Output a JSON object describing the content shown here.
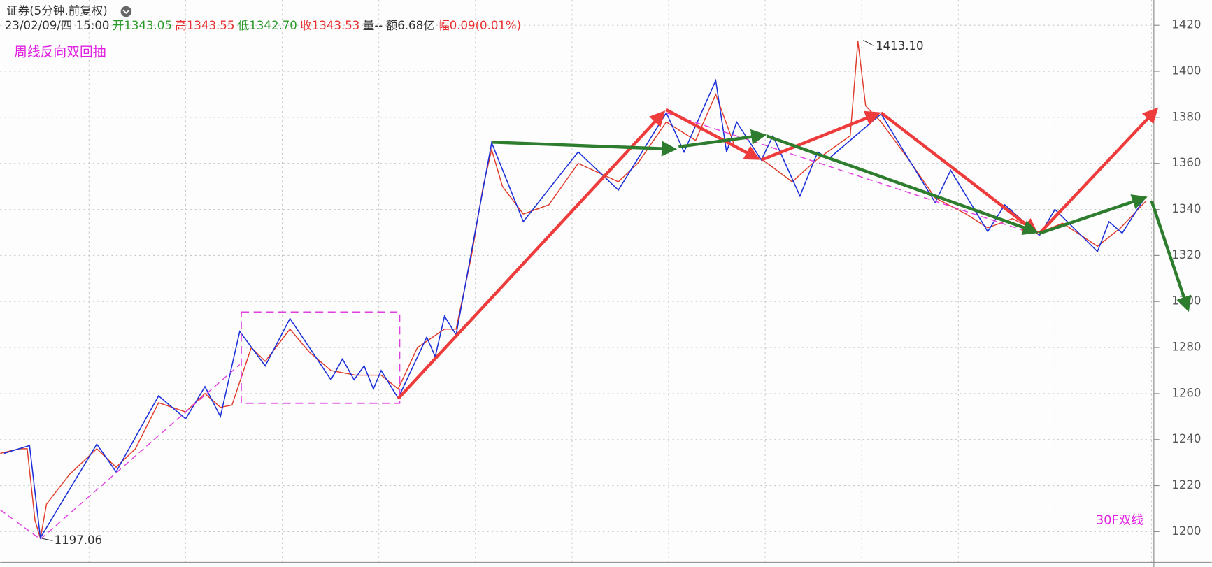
{
  "header": {
    "title": "证券(5分钟.前复权)",
    "items": [
      {
        "text": "23/02/09/四 15:00",
        "color": "#333333"
      },
      {
        "text": "开1343.05",
        "color": "#2a9a2a"
      },
      {
        "text": "高1343.55",
        "color": "#e83030"
      },
      {
        "text": "低1342.70",
        "color": "#2a9a2a"
      },
      {
        "text": "收1343.53",
        "color": "#e83030"
      },
      {
        "text": "量--",
        "color": "#333333"
      },
      {
        "text": "额6.68亿",
        "color": "#333333"
      },
      {
        "text": "幅0.09(0.01%)",
        "color": "#e83030"
      }
    ]
  },
  "annotations": {
    "pattern": "周线反向双回抽",
    "lines": "30F双线",
    "high": "1413.10",
    "low": "1197.06"
  },
  "chart_data": {
    "type": "line",
    "grid": true,
    "xlim": [
      0,
      300
    ],
    "ylim": [
      1190,
      1431
    ],
    "yticks": [
      1200,
      1220,
      1240,
      1260,
      1280,
      1300,
      1320,
      1340,
      1360,
      1380,
      1400,
      1420
    ],
    "series": [
      {
        "name": "price",
        "color": "#e03a2a",
        "width": 1.3,
        "x": [
          0,
          5,
          7,
          9,
          10.4,
          12,
          18,
          25,
          30,
          35,
          41,
          48,
          53,
          57,
          60,
          62,
          65,
          68.6,
          75,
          80,
          85.6,
          92,
          98.6,
          103,
          108,
          115,
          118,
          122,
          125,
          127.2,
          130,
          135.4,
          142,
          149.6,
          160,
          165,
          172.4,
          180,
          185.2,
          190,
          197,
          205,
          211.6,
          220,
          222,
          224,
          228,
          235,
          242,
          250,
          255.6,
          262,
          269,
          275,
          284,
          290,
          296.5
        ],
        "values": [
          1234,
          1236,
          1236,
          1205,
          1197.06,
          1212,
          1225,
          1236,
          1228,
          1236,
          1256,
          1252,
          1260,
          1254,
          1255,
          1265,
          1280,
          1274,
          1288,
          1278,
          1270,
          1268,
          1268,
          1262,
          1280,
          1288,
          1288,
          1320,
          1350,
          1366,
          1350,
          1338,
          1342,
          1360,
          1352,
          1360,
          1378,
          1370,
          1390,
          1368,
          1362,
          1352,
          1362,
          1372,
          1413.1,
          1385,
          1378,
          1362,
          1345,
          1338,
          1332,
          1336,
          1330,
          1334,
          1324,
          1332,
          1343.53
        ]
      },
      {
        "name": "zigzag",
        "color": "#1a2fd8",
        "width": 1.4,
        "x": [
          1,
          7.6,
          10.4,
          25,
          30,
          41,
          48,
          53,
          57,
          62,
          68.6,
          75,
          85.6,
          88.6,
          91.6,
          94.2,
          96.6,
          98.6,
          103,
          110.4,
          112.6,
          115,
          118,
          127.2,
          135.4,
          149.6,
          160,
          172.4,
          177,
          185.2,
          188,
          190.6,
          197,
          200,
          207,
          211.6,
          214.4,
          228,
          242,
          246,
          255.6,
          260,
          269,
          273,
          284,
          287,
          290.4,
          296
        ],
        "values": [
          1234,
          1237.4,
          1197.3,
          1238,
          1226,
          1259,
          1249,
          1263,
          1250,
          1287,
          1272,
          1292.6,
          1266,
          1275,
          1266,
          1272,
          1262,
          1270,
          1258,
          1284.5,
          1276,
          1293.6,
          1285.5,
          1369,
          1334.7,
          1365,
          1348.4,
          1382,
          1365,
          1396,
          1365,
          1378,
          1361.5,
          1372,
          1345.8,
          1365,
          1362,
          1381.5,
          1343,
          1357,
          1330.4,
          1342,
          1328.7,
          1340,
          1321.7,
          1334.7,
          1329.7,
          1344.4
        ]
      }
    ]
  }
}
